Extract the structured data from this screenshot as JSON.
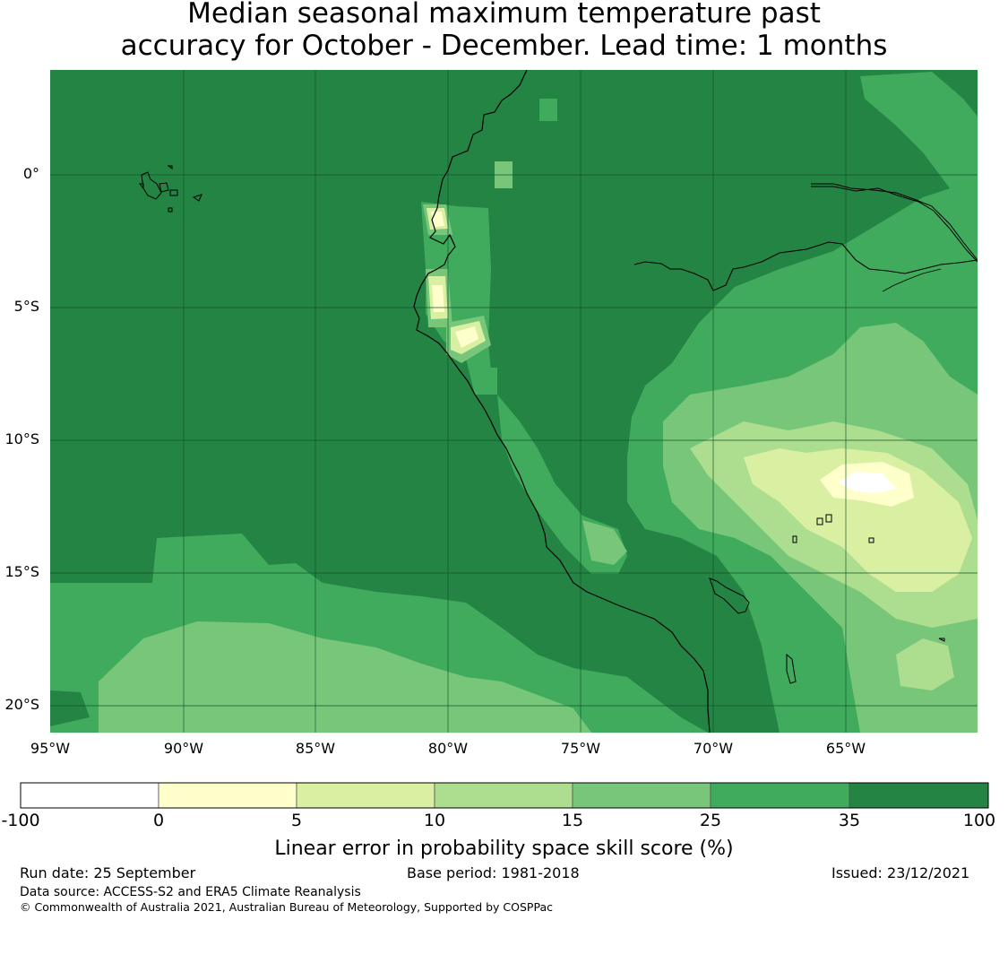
{
  "title": {
    "line1": "Median seasonal maximum temperature past",
    "line2": "accuracy for October - December. Lead time: 1 months"
  },
  "map": {
    "lat_labels": [
      "0°",
      "5°S",
      "10°S",
      "15°S",
      "20°S"
    ],
    "lon_labels": [
      "95°W",
      "90°W",
      "85°W",
      "80°W",
      "75°W",
      "70°W",
      "65°W"
    ],
    "colors": {
      "ocean_base": "#238443",
      "gridline": "#10552a",
      "coast": "#000000"
    }
  },
  "colorbar": {
    "ticks": [
      "-100",
      "0",
      "5",
      "10",
      "15",
      "25",
      "35",
      "100"
    ],
    "colors": [
      "#ffffff",
      "#ffffcc",
      "#d9f0a3",
      "#addd8e",
      "#78c679",
      "#41ab5d",
      "#238443"
    ],
    "label": "Linear error in probability space skill score (%)"
  },
  "footer": {
    "run_date": "Run date: 25 September",
    "base_period": "Base period: 1981-2018",
    "issued": "Issued: 23/12/2021",
    "data_source": "Data source: ACCESS-S2 and ERA5 Climate Reanalysis",
    "copyright": "© Commonwealth of Australia 2021, Australian Bureau of Meteorology, Supported by COSPPac"
  }
}
